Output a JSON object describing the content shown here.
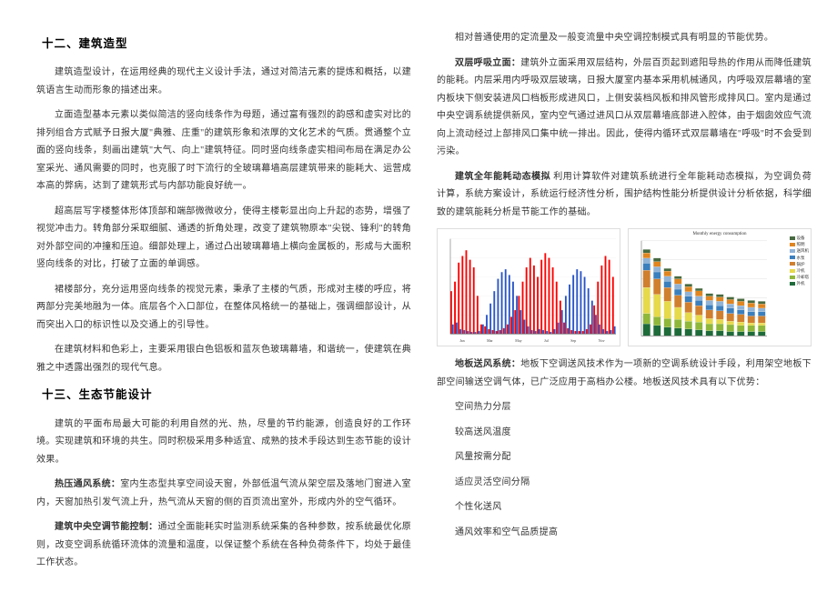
{
  "left": {
    "h1": "十二、建筑造型",
    "p1": "建筑造型设计，在运用经典的现代主义设计手法，通过对简洁元素的提炼和概括，以建筑语言生动而形象的描述出来。",
    "p2": "立面造型基本元素以类似简洁的竖向线条作为母题，通过富有强烈的韵感和虚实对比的排列组合方式赋予日报大厦\"典雅、庄重\"的建筑形象和浓厚的文化艺术的气质。贯通整个立面的竖向线条，刻画出建筑\"大气、向上\"建筑特征。同时竖向线条虚实相间布局在满足办公室采光、通风需要的同时，也克服了时下流行的全玻璃幕墙高层建筑带来的能耗大、运营成本高的弊病，达到了建筑形式与内部功能良好统一。",
    "p3": "超高层写字楼整体形体顶部和端部微微收分，使得主楼彰显出向上升起的态势，增强了视觉冲击力。转角部分采取细腻、通透的折角处理，改变了建筑物原本\"尖锐、锋利\"的转角对外部空间的冲撞和压迫。细部处理上，通过凸出玻璃幕墙上横向金属板的，形成与大面积竖向线条的对比，打破了立面的单调感。",
    "p4": "裙楼部分，充分运用竖向线条的视觉元素，秉承了主楼的气质，形成对主楼的呼应，将两部分完美地融为一体。底层各个入口部位，在整体风格统一的基础上，强调细部设计，从而突出入口的标识性以及交通上的引导性。",
    "p5": "在建筑材料和色彩上，主要采用银白色铝板和蓝灰色玻璃幕墙，和谐统一，使建筑在典雅之中透露出强烈的现代气息。",
    "h2": "十三、生态节能设计",
    "p6": "建筑的平面布局最大可能的利用自然的光、热，尽量的节约能源，创造良好的工作环境。实现建筑和环境的共生。同时积极采用多种适宜、成熟的技术手段达到生态节能的设计效果。",
    "p7_hd": "热压通风系统：",
    "p7": "室内生态型共享空间设天窗，外部低温气流从架空层及落地门窗进入室内，天窗加热引发气流上升，热气流从天窗的侧的百页流出室外，形成内外的空气循环。",
    "p8_hd": "建筑中央空调节能控制：",
    "p8": "通过全面能耗实时监测系统采集的各种参数，按系统最优化原则，改变空调系统循环流体的流量和温度，以保证整个系统在各种负荷条件下，均处于最佳工作状态。"
  },
  "right": {
    "p1": "相对普通使用的定流量及一般变流量中央空调控制模式具有明显的节能优势。",
    "p2_hd": "双层呼吸立面：",
    "p2": "建筑外立面采用双层结构，外层百页起到遮阳导热的作用从而降低建筑的能耗。内层采用内呼吸双层玻璃，日报大厦室内基本采用机械通风，内呼吸双层幕墙的室内板块下侧安装进风口档板形成进风口，上侧安装档风板和排风管形成排风口。室内是通过中央空调系统提供新风，室内空气通过进风口从双层幕墙底部进入腔体，由于烟囱效应气流向上流动经过上部排风口集中统一排出。因此，使得内循环式双层幕墙在\"呼吸\"时不会受到污染。",
    "p3_hd": "建筑全年能耗动态模拟",
    "p3": " 利用计算软件对建筑系统进行全年能耗动态模拟，为空调负荷计算，系统方案设计，系统运行经济性分析，围护结构性能分析提供设计分析依据，科学细致的建筑能耗分析是节能工作的基础。",
    "p4_hd": "地板送风系统：",
    "p4": "地板下空调送风技术作为一项新的空调系统设计手段，利用架空地板下部空间输送空调气体，已广泛应用于高档办公楼。地板送风技术具有以下优势：",
    "bullets": [
      "空间热力分层",
      "较高送风温度",
      "风量按需分配",
      "适应灵活空间分隔",
      "个性化送风",
      "通风效率和空气品质提高"
    ]
  },
  "chart_left": {
    "title": "",
    "background_color": "#ffffff",
    "grid_color": "#f0f0f0",
    "bar_colors": [
      "#ff0000",
      "#2a55c8"
    ],
    "series_red": [
      45,
      55,
      75,
      82,
      88,
      78,
      70,
      40,
      10,
      8,
      5,
      4,
      3,
      4,
      6,
      10,
      18,
      25,
      40,
      55,
      70,
      80,
      72,
      60,
      78,
      85,
      80,
      70,
      55,
      35,
      12,
      6,
      4,
      3,
      3,
      3,
      5,
      10,
      30,
      55,
      72,
      82,
      78,
      60
    ],
    "series_blue": [
      10,
      12,
      5,
      4,
      3,
      2,
      2,
      3,
      10,
      20,
      32,
      45,
      58,
      65,
      68,
      62,
      55,
      40,
      25,
      15,
      8,
      4,
      3,
      5,
      4,
      3,
      2,
      5,
      12,
      25,
      40,
      52,
      62,
      68,
      66,
      60,
      48,
      35,
      20,
      10,
      5,
      3,
      4,
      8
    ],
    "ylim": [
      0,
      100
    ],
    "legend": [
      {
        "swatch": "#b45f2e",
        "label": "Max Outside Temp"
      },
      {
        "swatch": "#6b8e23",
        "label": "Max Zone Temp"
      },
      {
        "swatch": "#ff0000",
        "label": "Cooling load (sens)"
      },
      {
        "swatch": "#2a55c8",
        "label": "Heating load (sens)"
      }
    ],
    "xlabels": [
      "Jan",
      "Mar",
      "May",
      "Jul",
      "Sep",
      "Nov"
    ]
  },
  "chart_right": {
    "title": "Monthly energy consumption",
    "background_color": "#ffffff",
    "grid_color": "#d9d9d9",
    "categories": [
      "1",
      "2",
      "3",
      "4",
      "5",
      "6",
      "7",
      "8",
      "9",
      "10",
      "11",
      "12"
    ],
    "stack_colors": [
      "#1e6b3a",
      "#8fb73a",
      "#e6d94a",
      "#d07f2e",
      "#3b7fbd",
      "#90b3d6",
      "#e0851f",
      "#476a3f"
    ],
    "stacks": [
      [
        14,
        12,
        30,
        20,
        8,
        6,
        6,
        4
      ],
      [
        12,
        10,
        26,
        18,
        8,
        6,
        6,
        4
      ],
      [
        10,
        10,
        20,
        16,
        7,
        6,
        6,
        3
      ],
      [
        9,
        10,
        14,
        14,
        7,
        6,
        6,
        3
      ],
      [
        8,
        9,
        10,
        12,
        7,
        5,
        6,
        3
      ],
      [
        7,
        9,
        8,
        11,
        6,
        5,
        6,
        3
      ],
      [
        6,
        8,
        6,
        10,
        6,
        5,
        5,
        3
      ],
      [
        6,
        8,
        5,
        10,
        6,
        5,
        5,
        3
      ],
      [
        5,
        8,
        4,
        9,
        6,
        5,
        5,
        3
      ],
      [
        5,
        7,
        4,
        9,
        5,
        5,
        5,
        3
      ],
      [
        5,
        7,
        3,
        8,
        5,
        5,
        5,
        3
      ],
      [
        5,
        7,
        3,
        8,
        5,
        4,
        5,
        3
      ]
    ],
    "ylim": [
      0,
      110
    ],
    "legend": [
      {
        "swatch": "#476a3f",
        "label": "设备"
      },
      {
        "swatch": "#e0851f",
        "label": "照明"
      },
      {
        "swatch": "#90b3d6",
        "label": "送风机"
      },
      {
        "swatch": "#3b7fbd",
        "label": "水泵"
      },
      {
        "swatch": "#d07f2e",
        "label": "锅炉"
      },
      {
        "swatch": "#e6d94a",
        "label": "冷机"
      },
      {
        "swatch": "#8fb73a",
        "label": "冷却塔"
      },
      {
        "swatch": "#1e6b3a",
        "label": "外机"
      }
    ]
  }
}
